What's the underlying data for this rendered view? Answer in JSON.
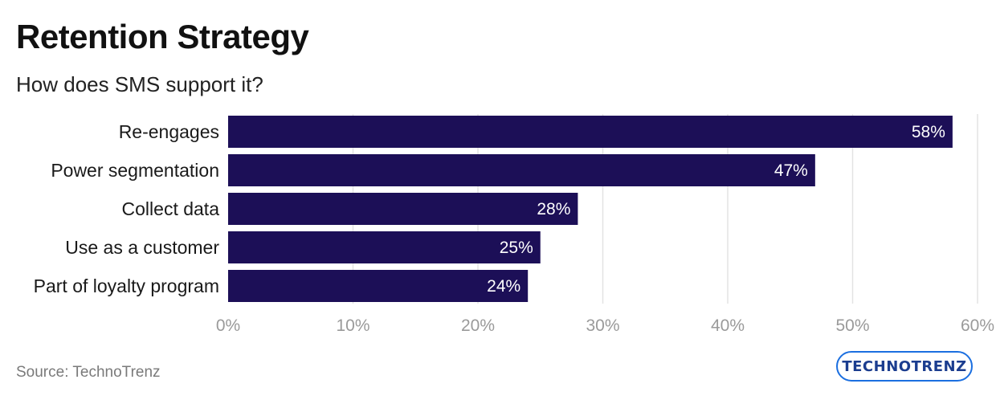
{
  "title": "Retention Strategy",
  "subtitle": "How does SMS support it?",
  "source": "Source: TechnoTrenz",
  "logo": {
    "text": "TECHNOTRENZ",
    "colors": {
      "ring": "#1b6fe0",
      "text": "#1b3d8f"
    }
  },
  "chart_data": {
    "type": "bar",
    "orientation": "horizontal",
    "categories": [
      "Re-engages",
      "Power segmentation",
      "Collect data",
      "Use as a customer",
      "Part of loyalty program"
    ],
    "values": [
      58,
      47,
      28,
      25,
      24
    ],
    "data_labels": [
      "58%",
      "47%",
      "28%",
      "25%",
      "24%"
    ],
    "xlim": [
      0,
      60
    ],
    "x_ticks": [
      0,
      10,
      20,
      30,
      40,
      50,
      60
    ],
    "x_tick_labels": [
      "0%",
      "10%",
      "20%",
      "30%",
      "40%",
      "50%",
      "60%"
    ],
    "grid": "vertical",
    "legend": "none",
    "colors": {
      "bar": "#1c0f57",
      "grid": "#e3e3e3",
      "tick_label": "#9a9a9a",
      "data_label": "#ffffff"
    }
  }
}
